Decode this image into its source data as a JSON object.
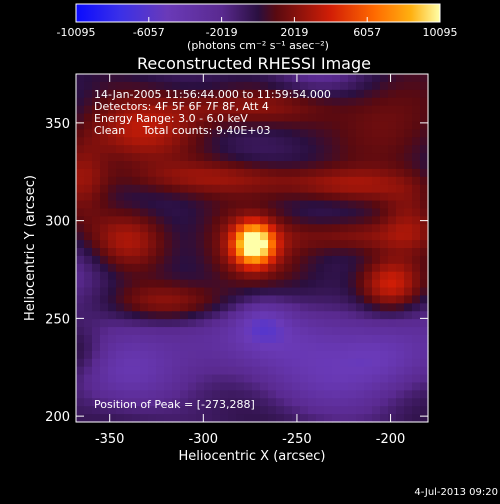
{
  "chart_data": {
    "type": "heatmap",
    "title": "Reconstructed RHESSI Image",
    "xlabel": "Heliocentric X (arcsec)",
    "ylabel": "Heliocentric Y (arcsec)",
    "xlim": [
      -368,
      -180
    ],
    "ylim": [
      197,
      375
    ],
    "x_ticks": [
      -350,
      -300,
      -250,
      -200
    ],
    "y_ticks": [
      200,
      250,
      300,
      350
    ],
    "peak": {
      "x": -273,
      "y": 288,
      "value": 10095
    },
    "colorbar": {
      "ticks": [
        -10095,
        -6057,
        -2019,
        2019,
        6057,
        10095
      ],
      "unit": "(photons cm⁻² s⁻¹ asec⁻²)",
      "range": [
        -10095,
        10095
      ]
    },
    "annotations": [
      "14-Jan-2005 11:56:44.000 to 11:59:54.000",
      "Detectors: 4F 5F 6F 7F 8F, Att 4",
      "Energy Range: 3.0 - 6.0 keV",
      "Clean     Total counts: 9.40E+03"
    ],
    "peak_label": "Position of Peak = [-273,288]",
    "blobs": [
      {
        "x": -273,
        "y": 288,
        "sx": 7,
        "sy": 7,
        "v": 10095
      },
      {
        "x": -276,
        "y": 285,
        "sx": 18,
        "sy": 15,
        "v": 3000
      },
      {
        "x": -200,
        "y": 267,
        "sx": 12,
        "sy": 10,
        "v": 5000
      },
      {
        "x": -318,
        "y": 258,
        "sx": 24,
        "sy": 7,
        "v": 3000
      },
      {
        "x": -340,
        "y": 290,
        "sx": 15,
        "sy": 11,
        "v": 3500
      },
      {
        "x": -335,
        "y": 345,
        "sx": 22,
        "sy": 12,
        "v": 3500
      },
      {
        "x": -280,
        "y": 358,
        "sx": 30,
        "sy": 7,
        "v": 2800
      },
      {
        "x": -295,
        "y": 322,
        "sx": 36,
        "sy": 6,
        "v": 2500
      },
      {
        "x": -225,
        "y": 318,
        "sx": 28,
        "sy": 6,
        "v": 2600
      },
      {
        "x": -220,
        "y": 292,
        "sx": 25,
        "sy": 6,
        "v": 2600
      },
      {
        "x": -365,
        "y": 322,
        "sx": 10,
        "sy": 14,
        "v": 2500
      },
      {
        "x": -365,
        "y": 232,
        "sx": 10,
        "sy": 10,
        "v": 2000
      },
      {
        "x": -200,
        "y": 350,
        "sx": 20,
        "sy": 18,
        "v": 2200
      },
      {
        "x": -190,
        "y": 300,
        "sx": 10,
        "sy": 12,
        "v": 2000
      },
      {
        "x": -345,
        "y": 220,
        "sx": 22,
        "sy": 12,
        "v": -3000
      },
      {
        "x": -255,
        "y": 238,
        "sx": 70,
        "sy": 14,
        "v": -3500
      },
      {
        "x": -268,
        "y": 248,
        "sx": 10,
        "sy": 8,
        "v": -2500
      },
      {
        "x": -230,
        "y": 215,
        "sx": 25,
        "sy": 12,
        "v": -2500
      },
      {
        "x": -370,
        "y": 275,
        "sx": 18,
        "sy": 12,
        "v": -1600
      },
      {
        "x": -240,
        "y": 375,
        "sx": 18,
        "sy": 8,
        "v": -2000
      },
      {
        "x": -205,
        "y": 228,
        "sx": 16,
        "sy": 10,
        "v": -2000
      }
    ]
  },
  "footer": {
    "date": "4-Jul-2013 09:20"
  }
}
